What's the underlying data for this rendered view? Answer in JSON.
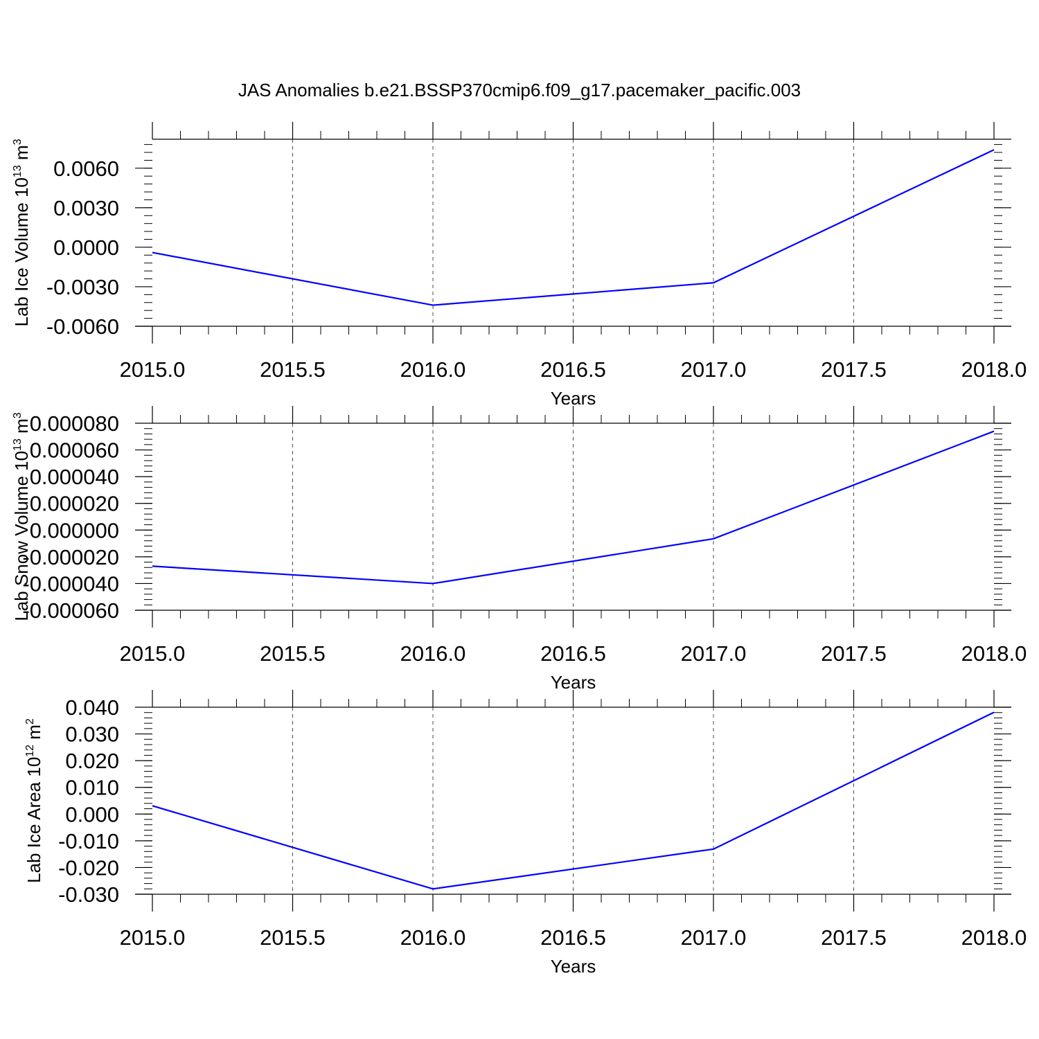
{
  "figure": {
    "title": "JAS Anomalies b.e21.BSSP370cmip6.f09_g17.pacemaker_pacific.003"
  },
  "colors": {
    "line": "#0000ff",
    "axis": "#000000",
    "grid": "#000000"
  },
  "chart_data": [
    {
      "type": "line",
      "title": "",
      "xlabel": "Years",
      "ylabel": "Lab Ice Volume 10",
      "ylabel_exp": "13",
      "ylabel_unit": " m",
      "ylabel_unit_exp": "3",
      "xlim": [
        2015.0,
        2018.0
      ],
      "ylim": [
        -0.006,
        0.0082
      ],
      "x_ticks": [
        "2015.0",
        "2015.5",
        "2016.0",
        "2016.5",
        "2017.0",
        "2017.5",
        "2018.0"
      ],
      "y_ticks": [
        {
          "value": -0.006,
          "label": "-0.0060"
        },
        {
          "value": -0.003,
          "label": "-0.0030"
        },
        {
          "value": 0.0,
          "label": "0.0000"
        },
        {
          "value": 0.003,
          "label": "0.0030"
        },
        {
          "value": 0.006,
          "label": "0.0060"
        }
      ],
      "grid": "vertical dashed",
      "x": [
        2015,
        2016,
        2017,
        2018
      ],
      "series": [
        {
          "values": [
            -0.0004,
            -0.0044,
            -0.0027,
            0.0074
          ]
        }
      ]
    },
    {
      "type": "line",
      "title": "",
      "xlabel": "Years",
      "ylabel": "Lab Snow Volume 10",
      "ylabel_exp": "13",
      "ylabel_unit": " m",
      "ylabel_unit_exp": "3",
      "xlim": [
        2015.0,
        2018.0
      ],
      "ylim": [
        -6e-05,
        8e-05
      ],
      "x_ticks": [
        "2015.0",
        "2015.5",
        "2016.0",
        "2016.5",
        "2017.0",
        "2017.5",
        "2018.0"
      ],
      "y_ticks": [
        {
          "value": -6e-05,
          "label": "-0.000060"
        },
        {
          "value": -4e-05,
          "label": "-0.000040"
        },
        {
          "value": -2e-05,
          "label": "-0.000020"
        },
        {
          "value": 0.0,
          "label": "0.000000"
        },
        {
          "value": 2e-05,
          "label": "0.000020"
        },
        {
          "value": 4e-05,
          "label": "0.000040"
        },
        {
          "value": 6e-05,
          "label": "0.000060"
        },
        {
          "value": 8e-05,
          "label": "0.000080"
        }
      ],
      "grid": "vertical dashed",
      "x": [
        2015,
        2016,
        2017,
        2018
      ],
      "series": [
        {
          "values": [
            -2.7e-05,
            -4e-05,
            -6.5e-06,
            7.4e-05
          ]
        }
      ]
    },
    {
      "type": "line",
      "title": "",
      "xlabel": "Years",
      "ylabel": "Lab Ice Area 10",
      "ylabel_exp": "12",
      "ylabel_unit": " m",
      "ylabel_unit_exp": "2",
      "xlim": [
        2015.0,
        2018.0
      ],
      "ylim": [
        -0.03,
        0.04
      ],
      "x_ticks": [
        "2015.0",
        "2015.5",
        "2016.0",
        "2016.5",
        "2017.0",
        "2017.5",
        "2018.0"
      ],
      "y_ticks": [
        {
          "value": -0.03,
          "label": "-0.030"
        },
        {
          "value": -0.02,
          "label": "-0.020"
        },
        {
          "value": -0.01,
          "label": "-0.010"
        },
        {
          "value": 0.0,
          "label": "0.000"
        },
        {
          "value": 0.01,
          "label": "0.010"
        },
        {
          "value": 0.02,
          "label": "0.020"
        },
        {
          "value": 0.03,
          "label": "0.030"
        },
        {
          "value": 0.04,
          "label": "0.040"
        }
      ],
      "grid": "vertical dashed",
      "x": [
        2015,
        2016,
        2017,
        2018
      ],
      "series": [
        {
          "values": [
            0.0031,
            -0.028,
            -0.0131,
            0.0381
          ]
        }
      ]
    }
  ]
}
